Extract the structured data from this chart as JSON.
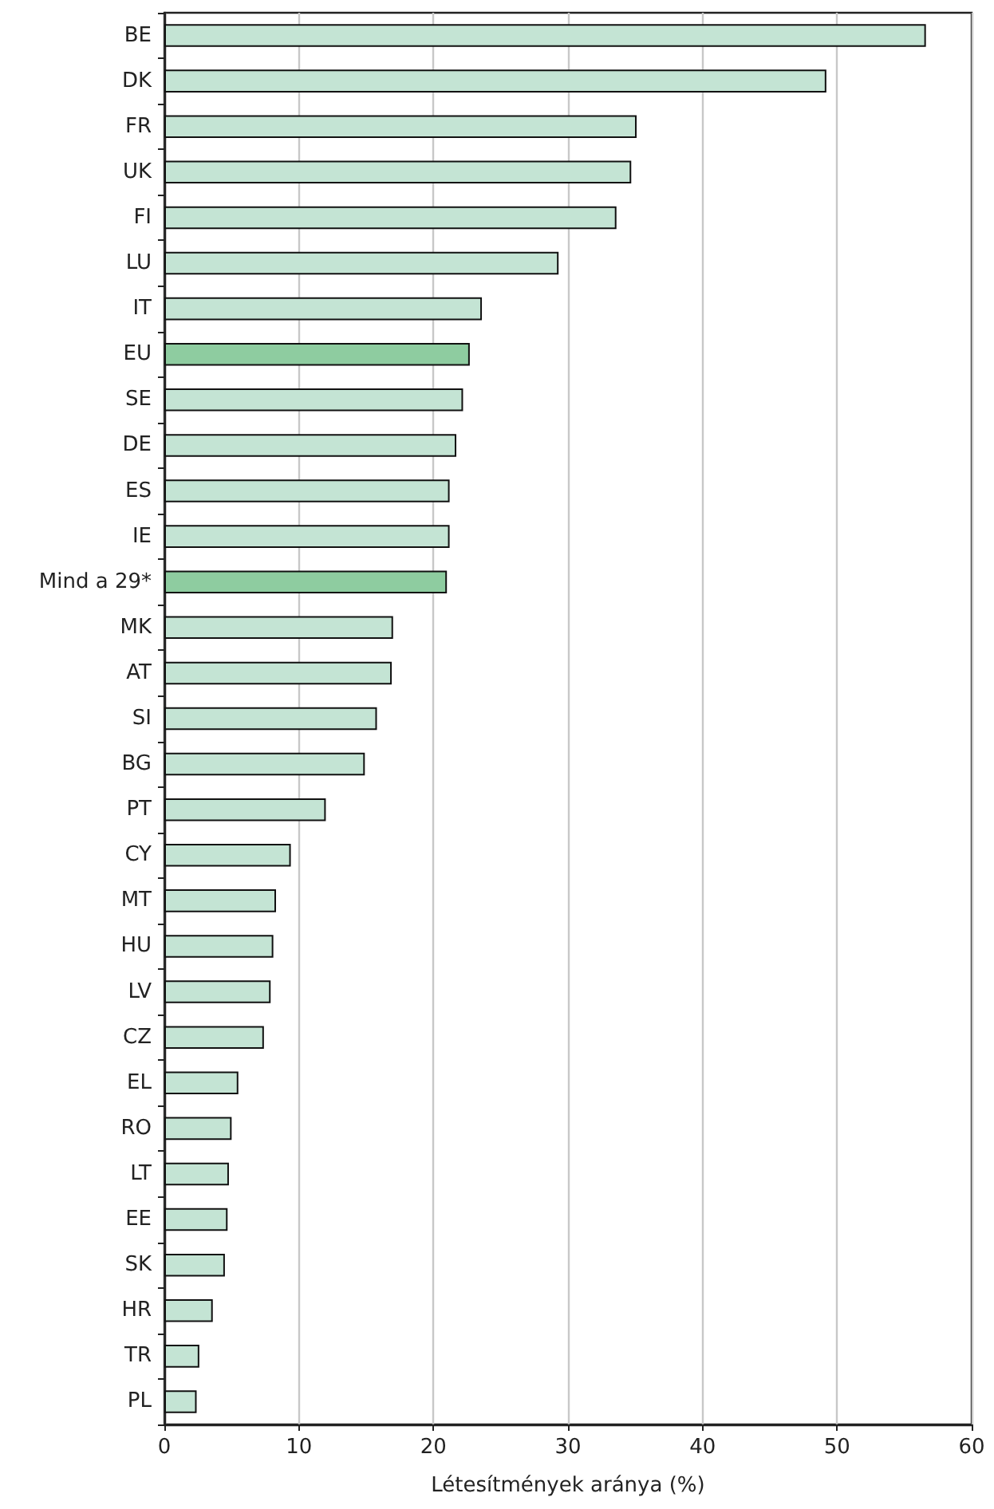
{
  "chart_data": {
    "type": "bar",
    "orientation": "horizontal",
    "xlabel": "Létesítmények aránya (%)",
    "categories": [
      "BE",
      "DK",
      "FR",
      "UK",
      "FI",
      "LU",
      "IT",
      "EU",
      "SE",
      "DE",
      "ES",
      "IE",
      "Mind a 29*",
      "MK",
      "AT",
      "SI",
      "BG",
      "PT",
      "CY",
      "MT",
      "HU",
      "LV",
      "CZ",
      "EL",
      "RO",
      "LT",
      "EE",
      "SK",
      "HR",
      "TR",
      "PL"
    ],
    "values": [
      56.6,
      49.2,
      35.1,
      34.7,
      33.6,
      29.3,
      23.6,
      22.7,
      22.2,
      21.7,
      21.2,
      21.2,
      21.0,
      17.0,
      16.9,
      15.8,
      14.9,
      12.0,
      9.4,
      8.3,
      8.1,
      7.9,
      7.4,
      5.5,
      5.0,
      4.8,
      4.7,
      4.5,
      3.6,
      2.6,
      2.4
    ],
    "colors": [
      "#c4e4d4",
      "#c4e4d4",
      "#c4e4d4",
      "#c4e4d4",
      "#c4e4d4",
      "#c4e4d4",
      "#c4e4d4",
      "#8ecca0",
      "#c4e4d4",
      "#c4e4d4",
      "#c4e4d4",
      "#c4e4d4",
      "#8ecca0",
      "#c4e4d4",
      "#c4e4d4",
      "#c4e4d4",
      "#c4e4d4",
      "#c4e4d4",
      "#c4e4d4",
      "#c4e4d4",
      "#c4e4d4",
      "#c4e4d4",
      "#c4e4d4",
      "#c4e4d4",
      "#c4e4d4",
      "#c4e4d4",
      "#c4e4d4",
      "#c4e4d4",
      "#c4e4d4",
      "#c4e4d4",
      "#c4e4d4"
    ],
    "xlim": [
      0,
      60
    ],
    "xticks": [
      0,
      10,
      20,
      30,
      40,
      50,
      60
    ],
    "grid": "x"
  }
}
